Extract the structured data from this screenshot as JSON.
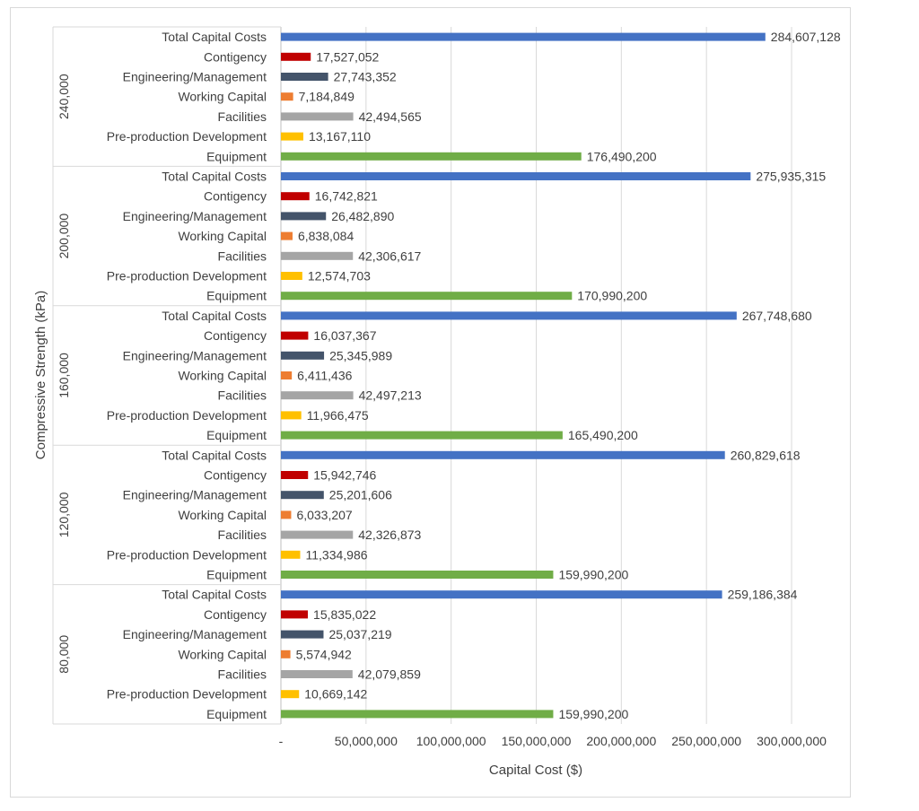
{
  "chart_data": {
    "type": "bar",
    "orientation": "horizontal",
    "xlabel": "Capital Cost ($)",
    "ylabel": "Compressive Strength (kPa)",
    "xlim": [
      0,
      300000000
    ],
    "xticks": [
      {
        "value": 0,
        "label": "-"
      },
      {
        "value": 50000000,
        "label": "50,000,000"
      },
      {
        "value": 100000000,
        "label": "100,000,000"
      },
      {
        "value": 150000000,
        "label": "150,000,000"
      },
      {
        "value": 200000000,
        "label": "200,000,000"
      },
      {
        "value": 250000000,
        "label": "250,000,000"
      },
      {
        "value": 300000000,
        "label": "300,000,000"
      }
    ],
    "grid": true,
    "legend": "none",
    "colors": {
      "Total Capital Costs": "#4472c4",
      "Contigency": "#c00000",
      "Engineering/Management": "#44546a",
      "Working Capital": "#ed7d31",
      "Facilities": "#a5a5a5",
      "Pre-production Development": "#ffc000",
      "Equipment": "#70ad47"
    },
    "groups": [
      {
        "name": "240,000",
        "items": [
          {
            "label": "Total Capital Costs",
            "value": 284607128,
            "text": "284,607,128"
          },
          {
            "label": "Contigency",
            "value": 17527052,
            "text": "17,527,052"
          },
          {
            "label": "Engineering/Management",
            "value": 27743352,
            "text": "27,743,352"
          },
          {
            "label": "Working Capital",
            "value": 7184849,
            "text": "7,184,849"
          },
          {
            "label": "Facilities",
            "value": 42494565,
            "text": "42,494,565"
          },
          {
            "label": "Pre-production Development",
            "value": 13167110,
            "text": "13,167,110"
          },
          {
            "label": "Equipment",
            "value": 176490200,
            "text": "176,490,200"
          }
        ]
      },
      {
        "name": "200,000",
        "items": [
          {
            "label": "Total Capital Costs",
            "value": 275935315,
            "text": "275,935,315"
          },
          {
            "label": "Contigency",
            "value": 16742821,
            "text": "16,742,821"
          },
          {
            "label": "Engineering/Management",
            "value": 26482890,
            "text": "26,482,890"
          },
          {
            "label": "Working Capital",
            "value": 6838084,
            "text": "6,838,084"
          },
          {
            "label": "Facilities",
            "value": 42306617,
            "text": "42,306,617"
          },
          {
            "label": "Pre-production Development",
            "value": 12574703,
            "text": "12,574,703"
          },
          {
            "label": "Equipment",
            "value": 170990200,
            "text": "170,990,200"
          }
        ]
      },
      {
        "name": "160,000",
        "items": [
          {
            "label": "Total Capital Costs",
            "value": 267748680,
            "text": "267,748,680"
          },
          {
            "label": "Contigency",
            "value": 16037367,
            "text": "16,037,367"
          },
          {
            "label": "Engineering/Management",
            "value": 25345989,
            "text": "25,345,989"
          },
          {
            "label": "Working Capital",
            "value": 6411436,
            "text": "6,411,436"
          },
          {
            "label": "Facilities",
            "value": 42497213,
            "text": "42,497,213"
          },
          {
            "label": "Pre-production Development",
            "value": 11966475,
            "text": "11,966,475"
          },
          {
            "label": "Equipment",
            "value": 165490200,
            "text": "165,490,200"
          }
        ]
      },
      {
        "name": "120,000",
        "items": [
          {
            "label": "Total Capital Costs",
            "value": 260829618,
            "text": "260,829,618"
          },
          {
            "label": "Contigency",
            "value": 15942746,
            "text": "15,942,746"
          },
          {
            "label": "Engineering/Management",
            "value": 25201606,
            "text": "25,201,606"
          },
          {
            "label": "Working Capital",
            "value": 6033207,
            "text": "6,033,207"
          },
          {
            "label": "Facilities",
            "value": 42326873,
            "text": "42,326,873"
          },
          {
            "label": "Pre-production Development",
            "value": 11334986,
            "text": "11,334,986"
          },
          {
            "label": "Equipment",
            "value": 159990200,
            "text": "159,990,200"
          }
        ]
      },
      {
        "name": "80,000",
        "items": [
          {
            "label": "Total Capital Costs",
            "value": 259186384,
            "text": "259,186,384"
          },
          {
            "label": "Contigency",
            "value": 15835022,
            "text": "15,835,022"
          },
          {
            "label": "Engineering/Management",
            "value": 25037219,
            "text": "25,037,219"
          },
          {
            "label": "Working Capital",
            "value": 5574942,
            "text": "5,574,942"
          },
          {
            "label": "Facilities",
            "value": 42079859,
            "text": "42,079,859"
          },
          {
            "label": "Pre-production Development",
            "value": 10669142,
            "text": "10,669,142"
          },
          {
            "label": "Equipment",
            "value": 159990200,
            "text": "159,990,200"
          }
        ]
      }
    ]
  }
}
